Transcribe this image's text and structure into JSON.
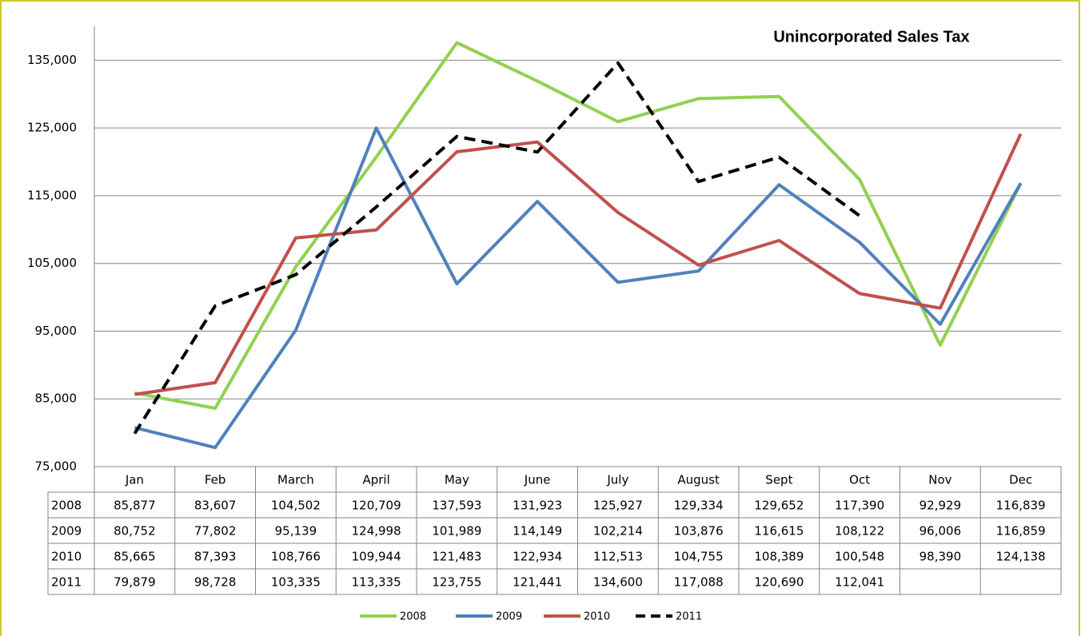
{
  "chart_data": {
    "type": "line",
    "title": "Unincorporated Sales Tax",
    "categories": [
      "Jan",
      "Feb",
      "March",
      "April",
      "May",
      "June",
      "July",
      "August",
      "Sept",
      "Oct",
      "Nov",
      "Dec"
    ],
    "series": [
      {
        "name": "2008",
        "color": "#92d050",
        "dashed": false,
        "values": [
          85877,
          83607,
          104502,
          120709,
          137593,
          131923,
          125927,
          129334,
          129652,
          117390,
          92929,
          116839
        ],
        "value_labels": [
          "85,877",
          "83,607",
          "104,502",
          "120,709",
          "137,593",
          "131,923",
          "125,927",
          "129,334",
          "129,652",
          "117,390",
          "92,929",
          "116,839"
        ]
      },
      {
        "name": "2009",
        "color": "#4f81bd",
        "dashed": false,
        "values": [
          80752,
          77802,
          95139,
          124998,
          101989,
          114149,
          102214,
          103876,
          116615,
          108122,
          96006,
          116859
        ],
        "value_labels": [
          "80,752",
          "77,802",
          "95,139",
          "124,998",
          "101,989",
          "114,149",
          "102,214",
          "103,876",
          "116,615",
          "108,122",
          "96,006",
          "116,859"
        ]
      },
      {
        "name": "2010",
        "color": "#c0504d",
        "dashed": false,
        "values": [
          85665,
          87393,
          108766,
          109944,
          121483,
          122934,
          112513,
          104755,
          108389,
          100548,
          98390,
          124138
        ],
        "value_labels": [
          "85,665",
          "87,393",
          "108,766",
          "109,944",
          "121,483",
          "122,934",
          "112,513",
          "104,755",
          "108,389",
          "100,548",
          "98,390",
          "124,138"
        ]
      },
      {
        "name": "2011",
        "color": "#000000",
        "dashed": true,
        "values": [
          79879,
          98728,
          103335,
          113335,
          123755,
          121441,
          134600,
          117088,
          120690,
          112041,
          null,
          null
        ],
        "value_labels": [
          "79,879",
          "98,728",
          "103,335",
          "113,335",
          "123,755",
          "121,441",
          "134,600",
          "117,088",
          "120,690",
          "112,041",
          null,
          null
        ]
      }
    ],
    "ylim": [
      75000,
      140000
    ],
    "yticks": [
      {
        "value": 75000,
        "label": "75,000"
      },
      {
        "value": 85000,
        "label": "85,000"
      },
      {
        "value": 95000,
        "label": "95,000"
      },
      {
        "value": 105000,
        "label": "105,000"
      },
      {
        "value": 115000,
        "label": "115,000"
      },
      {
        "value": 125000,
        "label": "125,000"
      },
      {
        "value": 135000,
        "label": "135,000"
      }
    ],
    "grid": true
  }
}
